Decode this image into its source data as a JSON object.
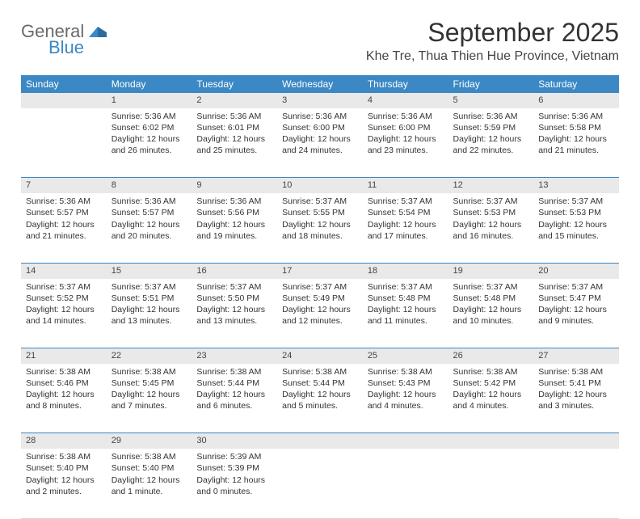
{
  "logo": {
    "text_gray": "General",
    "text_blue": "Blue",
    "mark_color": "#3b88c4"
  },
  "header": {
    "month_title": "September 2025",
    "location": "Khe Tre, Thua Thien Hue Province, Vietnam"
  },
  "colors": {
    "header_bg": "#3b88c4",
    "header_text": "#ffffff",
    "daynum_bg": "#e9e9e9",
    "body_text": "#333333",
    "row_divider": "#3b88c4"
  },
  "day_headers": [
    "Sunday",
    "Monday",
    "Tuesday",
    "Wednesday",
    "Thursday",
    "Friday",
    "Saturday"
  ],
  "weeks": [
    {
      "nums": [
        "",
        "1",
        "2",
        "3",
        "4",
        "5",
        "6"
      ],
      "cells": [
        null,
        {
          "sunrise": "Sunrise: 5:36 AM",
          "sunset": "Sunset: 6:02 PM",
          "day1": "Daylight: 12 hours",
          "day2": "and 26 minutes."
        },
        {
          "sunrise": "Sunrise: 5:36 AM",
          "sunset": "Sunset: 6:01 PM",
          "day1": "Daylight: 12 hours",
          "day2": "and 25 minutes."
        },
        {
          "sunrise": "Sunrise: 5:36 AM",
          "sunset": "Sunset: 6:00 PM",
          "day1": "Daylight: 12 hours",
          "day2": "and 24 minutes."
        },
        {
          "sunrise": "Sunrise: 5:36 AM",
          "sunset": "Sunset: 6:00 PM",
          "day1": "Daylight: 12 hours",
          "day2": "and 23 minutes."
        },
        {
          "sunrise": "Sunrise: 5:36 AM",
          "sunset": "Sunset: 5:59 PM",
          "day1": "Daylight: 12 hours",
          "day2": "and 22 minutes."
        },
        {
          "sunrise": "Sunrise: 5:36 AM",
          "sunset": "Sunset: 5:58 PM",
          "day1": "Daylight: 12 hours",
          "day2": "and 21 minutes."
        }
      ]
    },
    {
      "nums": [
        "7",
        "8",
        "9",
        "10",
        "11",
        "12",
        "13"
      ],
      "cells": [
        {
          "sunrise": "Sunrise: 5:36 AM",
          "sunset": "Sunset: 5:57 PM",
          "day1": "Daylight: 12 hours",
          "day2": "and 21 minutes."
        },
        {
          "sunrise": "Sunrise: 5:36 AM",
          "sunset": "Sunset: 5:57 PM",
          "day1": "Daylight: 12 hours",
          "day2": "and 20 minutes."
        },
        {
          "sunrise": "Sunrise: 5:36 AM",
          "sunset": "Sunset: 5:56 PM",
          "day1": "Daylight: 12 hours",
          "day2": "and 19 minutes."
        },
        {
          "sunrise": "Sunrise: 5:37 AM",
          "sunset": "Sunset: 5:55 PM",
          "day1": "Daylight: 12 hours",
          "day2": "and 18 minutes."
        },
        {
          "sunrise": "Sunrise: 5:37 AM",
          "sunset": "Sunset: 5:54 PM",
          "day1": "Daylight: 12 hours",
          "day2": "and 17 minutes."
        },
        {
          "sunrise": "Sunrise: 5:37 AM",
          "sunset": "Sunset: 5:53 PM",
          "day1": "Daylight: 12 hours",
          "day2": "and 16 minutes."
        },
        {
          "sunrise": "Sunrise: 5:37 AM",
          "sunset": "Sunset: 5:53 PM",
          "day1": "Daylight: 12 hours",
          "day2": "and 15 minutes."
        }
      ]
    },
    {
      "nums": [
        "14",
        "15",
        "16",
        "17",
        "18",
        "19",
        "20"
      ],
      "cells": [
        {
          "sunrise": "Sunrise: 5:37 AM",
          "sunset": "Sunset: 5:52 PM",
          "day1": "Daylight: 12 hours",
          "day2": "and 14 minutes."
        },
        {
          "sunrise": "Sunrise: 5:37 AM",
          "sunset": "Sunset: 5:51 PM",
          "day1": "Daylight: 12 hours",
          "day2": "and 13 minutes."
        },
        {
          "sunrise": "Sunrise: 5:37 AM",
          "sunset": "Sunset: 5:50 PM",
          "day1": "Daylight: 12 hours",
          "day2": "and 13 minutes."
        },
        {
          "sunrise": "Sunrise: 5:37 AM",
          "sunset": "Sunset: 5:49 PM",
          "day1": "Daylight: 12 hours",
          "day2": "and 12 minutes."
        },
        {
          "sunrise": "Sunrise: 5:37 AM",
          "sunset": "Sunset: 5:48 PM",
          "day1": "Daylight: 12 hours",
          "day2": "and 11 minutes."
        },
        {
          "sunrise": "Sunrise: 5:37 AM",
          "sunset": "Sunset: 5:48 PM",
          "day1": "Daylight: 12 hours",
          "day2": "and 10 minutes."
        },
        {
          "sunrise": "Sunrise: 5:37 AM",
          "sunset": "Sunset: 5:47 PM",
          "day1": "Daylight: 12 hours",
          "day2": "and 9 minutes."
        }
      ]
    },
    {
      "nums": [
        "21",
        "22",
        "23",
        "24",
        "25",
        "26",
        "27"
      ],
      "cells": [
        {
          "sunrise": "Sunrise: 5:38 AM",
          "sunset": "Sunset: 5:46 PM",
          "day1": "Daylight: 12 hours",
          "day2": "and 8 minutes."
        },
        {
          "sunrise": "Sunrise: 5:38 AM",
          "sunset": "Sunset: 5:45 PM",
          "day1": "Daylight: 12 hours",
          "day2": "and 7 minutes."
        },
        {
          "sunrise": "Sunrise: 5:38 AM",
          "sunset": "Sunset: 5:44 PM",
          "day1": "Daylight: 12 hours",
          "day2": "and 6 minutes."
        },
        {
          "sunrise": "Sunrise: 5:38 AM",
          "sunset": "Sunset: 5:44 PM",
          "day1": "Daylight: 12 hours",
          "day2": "and 5 minutes."
        },
        {
          "sunrise": "Sunrise: 5:38 AM",
          "sunset": "Sunset: 5:43 PM",
          "day1": "Daylight: 12 hours",
          "day2": "and 4 minutes."
        },
        {
          "sunrise": "Sunrise: 5:38 AM",
          "sunset": "Sunset: 5:42 PM",
          "day1": "Daylight: 12 hours",
          "day2": "and 4 minutes."
        },
        {
          "sunrise": "Sunrise: 5:38 AM",
          "sunset": "Sunset: 5:41 PM",
          "day1": "Daylight: 12 hours",
          "day2": "and 3 minutes."
        }
      ]
    },
    {
      "nums": [
        "28",
        "29",
        "30",
        "",
        "",
        "",
        ""
      ],
      "cells": [
        {
          "sunrise": "Sunrise: 5:38 AM",
          "sunset": "Sunset: 5:40 PM",
          "day1": "Daylight: 12 hours",
          "day2": "and 2 minutes."
        },
        {
          "sunrise": "Sunrise: 5:38 AM",
          "sunset": "Sunset: 5:40 PM",
          "day1": "Daylight: 12 hours",
          "day2": "and 1 minute."
        },
        {
          "sunrise": "Sunrise: 5:39 AM",
          "sunset": "Sunset: 5:39 PM",
          "day1": "Daylight: 12 hours",
          "day2": "and 0 minutes."
        },
        null,
        null,
        null,
        null
      ]
    }
  ]
}
